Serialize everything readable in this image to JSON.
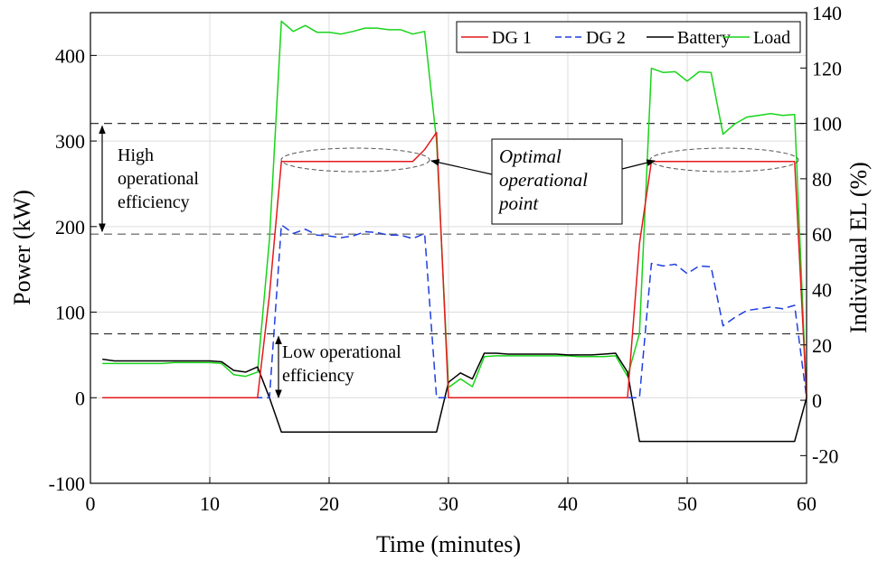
{
  "chart_data": {
    "type": "line",
    "xlabel": "Time (minutes)",
    "ylabel_left": "Power (kW)",
    "ylabel_right": "Individual EL (%)",
    "xlim": [
      0,
      60
    ],
    "ylim_left": [
      -100,
      450
    ],
    "ylim_right": [
      -30,
      140
    ],
    "grid": true,
    "legend_position": "top-right",
    "x_ticks": [
      0,
      10,
      20,
      30,
      40,
      50,
      60
    ],
    "y_ticks_left": [
      -100,
      0,
      100,
      200,
      300,
      400
    ],
    "y_ticks_right": [
      -20,
      0,
      20,
      40,
      60,
      80,
      100,
      120,
      140
    ],
    "series": [
      {
        "name": "DG 1",
        "color": "#e41a1c",
        "dash": "solid",
        "x": [
          1,
          14,
          15,
          16,
          17,
          18,
          19,
          20,
          21,
          22,
          23,
          24,
          25,
          26,
          27,
          28,
          29,
          30,
          31,
          32,
          33,
          34,
          35,
          36,
          37,
          38,
          39,
          40,
          41,
          42,
          43,
          44,
          45,
          46,
          47,
          48,
          49,
          50,
          51,
          52,
          53,
          54,
          55,
          56,
          57,
          58,
          59,
          60
        ],
        "values": [
          0,
          0,
          120,
          276,
          276,
          276,
          276,
          276,
          276,
          276,
          276,
          276,
          276,
          276,
          276,
          290,
          310,
          0,
          0,
          0,
          0,
          0,
          0,
          0,
          0,
          0,
          0,
          0,
          0,
          0,
          0,
          0,
          0,
          180,
          276,
          276,
          276,
          276,
          276,
          276,
          276,
          276,
          276,
          276,
          276,
          276,
          276,
          0
        ]
      },
      {
        "name": "DG 2",
        "color": "#1f3fe0",
        "dash": "dashed",
        "x": [
          1,
          15,
          16,
          17,
          18,
          19,
          20,
          21,
          22,
          23,
          24,
          25,
          26,
          27,
          28,
          29,
          30,
          31,
          32,
          33,
          34,
          35,
          36,
          37,
          38,
          39,
          40,
          41,
          42,
          43,
          44,
          45,
          46,
          47,
          48,
          49,
          50,
          51,
          52,
          53,
          54,
          55,
          56,
          57,
          58,
          59,
          60
        ],
        "values": [
          0,
          0,
          202,
          192,
          197,
          190,
          189,
          187,
          189,
          194,
          193,
          190,
          190,
          186,
          192,
          0,
          0,
          0,
          0,
          0,
          0,
          0,
          0,
          0,
          0,
          0,
          0,
          0,
          0,
          0,
          0,
          0,
          0,
          157,
          154,
          156,
          145,
          154,
          153,
          84,
          94,
          102,
          104,
          106,
          104,
          108,
          0
        ]
      },
      {
        "name": "Battery",
        "color": "#000000",
        "dash": "solid",
        "x": [
          1,
          2,
          3,
          4,
          5,
          6,
          7,
          8,
          9,
          10,
          11,
          12,
          13,
          14,
          15,
          16,
          17,
          18,
          19,
          20,
          21,
          22,
          23,
          24,
          25,
          26,
          27,
          28,
          29,
          30,
          31,
          32,
          33,
          34,
          35,
          36,
          37,
          38,
          39,
          40,
          41,
          42,
          43,
          44,
          45,
          46,
          47,
          48,
          49,
          50,
          51,
          52,
          53,
          54,
          55,
          56,
          57,
          58,
          59,
          60
        ],
        "values": [
          45,
          43,
          43,
          43,
          43,
          43,
          43,
          43,
          43,
          43,
          42,
          32,
          30,
          36,
          0,
          -40,
          -40,
          -40,
          -40,
          -40,
          -40,
          -40,
          -40,
          -40,
          -40,
          -40,
          -40,
          -40,
          -40,
          18,
          29,
          22,
          52,
          52,
          51,
          51,
          51,
          51,
          51,
          50,
          50,
          50,
          51,
          52,
          30,
          -51,
          -51,
          -51,
          -51,
          -51,
          -51,
          -51,
          -51,
          -51,
          -51,
          -51,
          -51,
          -51,
          -51,
          0
        ]
      },
      {
        "name": "Load",
        "color": "#19d419",
        "dash": "solid",
        "x": [
          1,
          2,
          3,
          4,
          5,
          6,
          7,
          8,
          9,
          10,
          11,
          12,
          13,
          14,
          15,
          16,
          17,
          18,
          19,
          20,
          21,
          22,
          23,
          24,
          25,
          26,
          27,
          28,
          29,
          30,
          31,
          32,
          33,
          34,
          35,
          36,
          37,
          38,
          39,
          40,
          41,
          42,
          43,
          44,
          45,
          46,
          47,
          48,
          49,
          50,
          51,
          52,
          53,
          54,
          55,
          56,
          57,
          58,
          59,
          60
        ],
        "values": [
          40,
          40,
          40,
          40,
          40,
          40,
          41,
          41,
          41,
          41,
          40,
          27,
          25,
          30,
          185,
          440,
          428,
          435,
          427,
          427,
          425,
          428,
          432,
          432,
          430,
          430,
          425,
          428,
          300,
          12,
          22,
          13,
          48,
          49,
          49,
          49,
          49,
          49,
          49,
          49,
          48,
          48,
          48,
          49,
          25,
          75,
          385,
          380,
          381,
          370,
          381,
          380,
          308,
          320,
          328,
          330,
          332,
          330,
          331,
          0
        ]
      }
    ],
    "reference_lines_right_axis": [
      100,
      60,
      24
    ],
    "annotations": {
      "high_efficiency": [
        "High",
        "operational",
        "efficiency"
      ],
      "low_efficiency": [
        "Low operational",
        "efficiency"
      ],
      "optimal_point": [
        "Optimal",
        "operational",
        "point"
      ]
    }
  }
}
